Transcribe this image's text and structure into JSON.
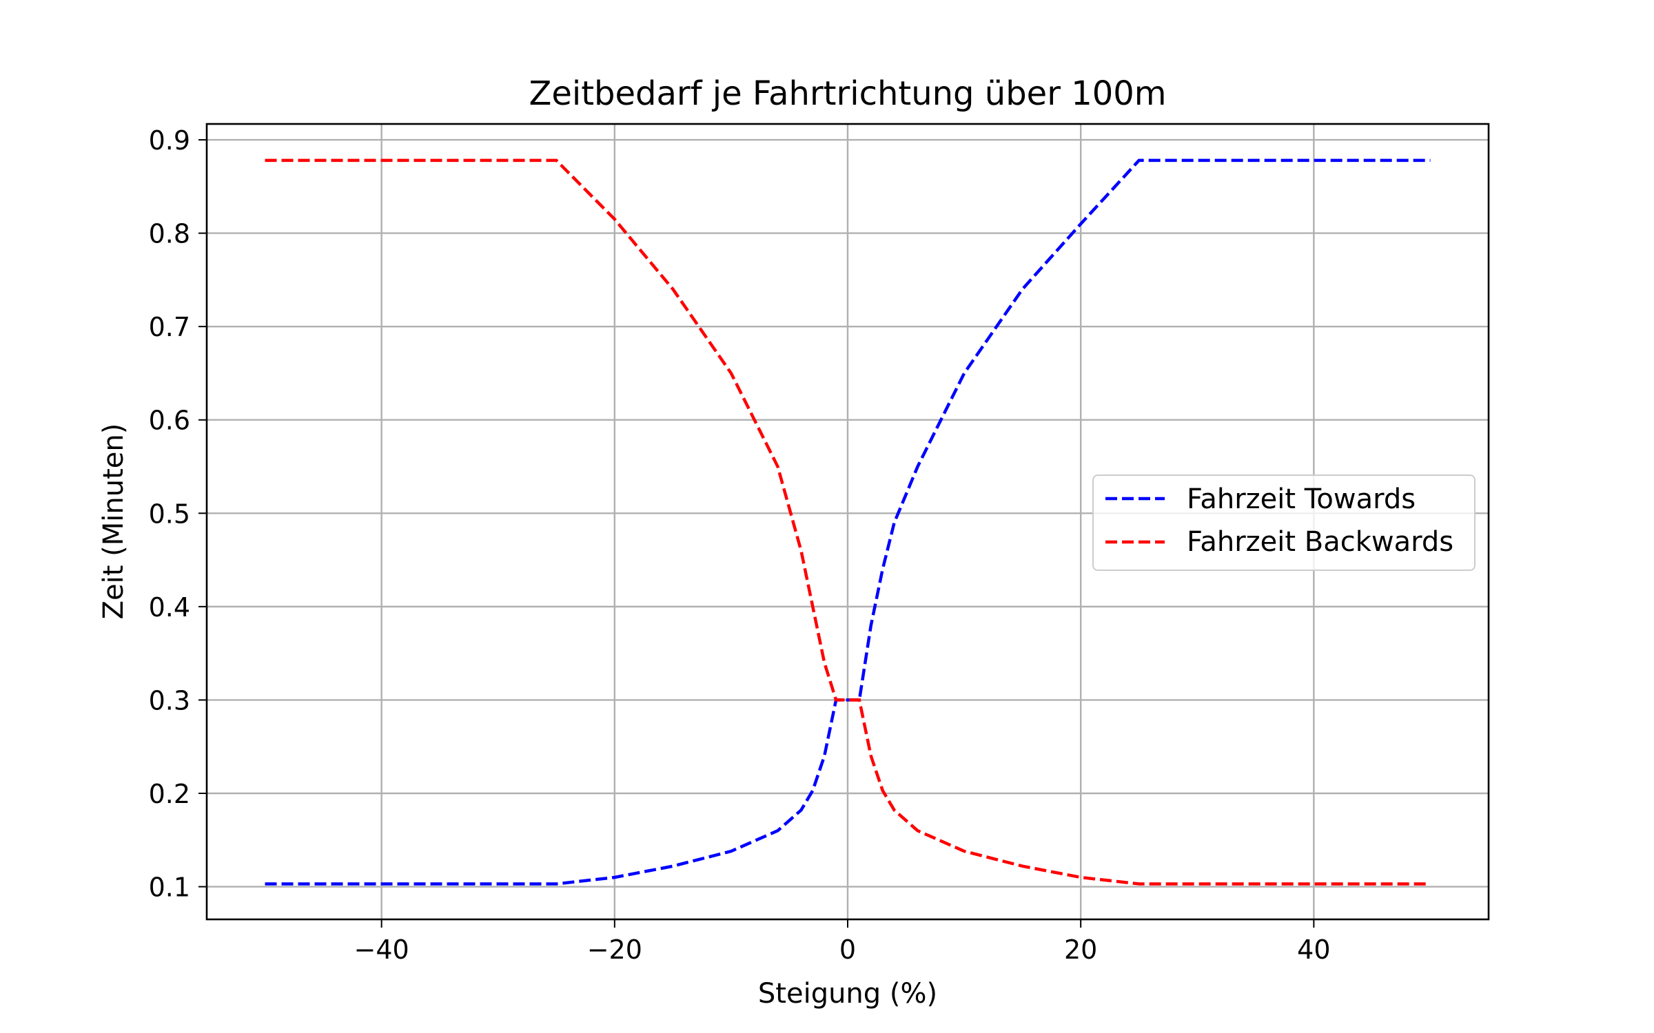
{
  "chart_data": {
    "type": "line",
    "title": "Zeitbedarf je Fahrtrichtung über 100m",
    "xlabel": "Steigung (%)",
    "ylabel": "Zeit (Minuten)",
    "xlim": [
      -55,
      55
    ],
    "ylim": [
      0.065,
      0.917
    ],
    "xticks": [
      -40,
      -20,
      0,
      20,
      40
    ],
    "xtick_labels": [
      "−40",
      "−20",
      "0",
      "20",
      "40"
    ],
    "yticks": [
      0.1,
      0.2,
      0.3,
      0.4,
      0.5,
      0.6,
      0.7,
      0.8,
      0.9
    ],
    "ytick_labels": [
      "0.1",
      "0.2",
      "0.3",
      "0.4",
      "0.5",
      "0.6",
      "0.7",
      "0.8",
      "0.9"
    ],
    "grid": true,
    "legend_position": "center-right",
    "series": [
      {
        "name": "Fahrzeit Towards",
        "color": "#0000ff",
        "linestyle": "dashed",
        "x": [
          -50,
          -25,
          -20,
          -15,
          -10,
          -6,
          -4,
          -3,
          -2,
          -1,
          0,
          1,
          2,
          3,
          4,
          6,
          8,
          10,
          15,
          20,
          25,
          50
        ],
        "y": [
          0.103,
          0.103,
          0.11,
          0.122,
          0.138,
          0.16,
          0.182,
          0.203,
          0.24,
          0.3,
          0.3,
          0.3,
          0.38,
          0.44,
          0.49,
          0.55,
          0.6,
          0.65,
          0.74,
          0.81,
          0.878,
          0.878
        ]
      },
      {
        "name": "Fahrzeit Backwards",
        "color": "#ff0000",
        "linestyle": "dashed",
        "x": [
          -50,
          -25,
          -20,
          -15,
          -10,
          -8,
          -6,
          -4,
          -3,
          -2,
          -1,
          0,
          1,
          2,
          3,
          4,
          6,
          10,
          15,
          20,
          25,
          50
        ],
        "y": [
          0.878,
          0.878,
          0.815,
          0.74,
          0.65,
          0.6,
          0.55,
          0.46,
          0.4,
          0.34,
          0.3,
          0.3,
          0.3,
          0.24,
          0.203,
          0.182,
          0.16,
          0.138,
          0.122,
          0.11,
          0.103,
          0.103
        ]
      }
    ]
  }
}
